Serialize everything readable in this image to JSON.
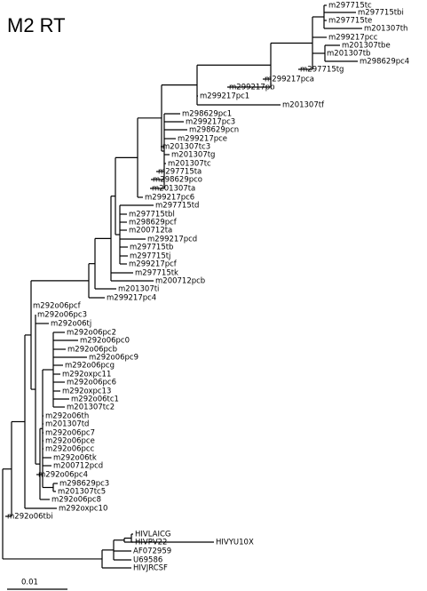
{
  "title": "M2 RT",
  "leaves": [
    "m297715tc",
    "m297715tbi",
    "m297715te",
    "m201307th",
    "m299217pcc",
    "m201307tbe",
    "m201307tb",
    "m298629pc4",
    "m297715tg",
    "m299217pca",
    "m299217pb",
    "m299217pc1",
    "m201307tf",
    "m298629pc1",
    "m299217pc3",
    "m298629pcn",
    "m299217pce",
    "m201307tc3",
    "m201307tg",
    "m201307tc",
    "m297715ta",
    "m298629pco",
    "m201307ta",
    "m299217pc6",
    "m297715td",
    "m297715tbl",
    "m298629pcf",
    "m200712ta",
    "m299217pcd",
    "m297715tb",
    "m297715tj",
    "m299217pcf",
    "m297715tk",
    "m200712pcb",
    "m201307ti",
    "m299217pc4",
    "m292o06pcf",
    "m292o06pc3",
    "m292o06tj",
    "m292o06pc2",
    "m292o06pc0",
    "m292o06pcb",
    "m292o06pc9",
    "m292o06pcg",
    "m292oxpc11",
    "m292o06pc6",
    "m292oxpc13",
    "m292o06tc1",
    "m201307tc2",
    "m292o06th",
    "m201307td",
    "m292o06pc7",
    "m292o06pce",
    "m292o06pcc",
    "m292o06tk",
    "m200712pcd",
    "m292o06pc4",
    "m298629pc3",
    "m201307tc5",
    "m292o06pc8",
    "m292oxpc10",
    "m292o06tbi",
    "HIVLAICG",
    "HIVPV22",
    "HIVYU10X",
    "AF072959",
    "U69586",
    "HIVJRCSF"
  ],
  "scale_label": "0.01"
}
